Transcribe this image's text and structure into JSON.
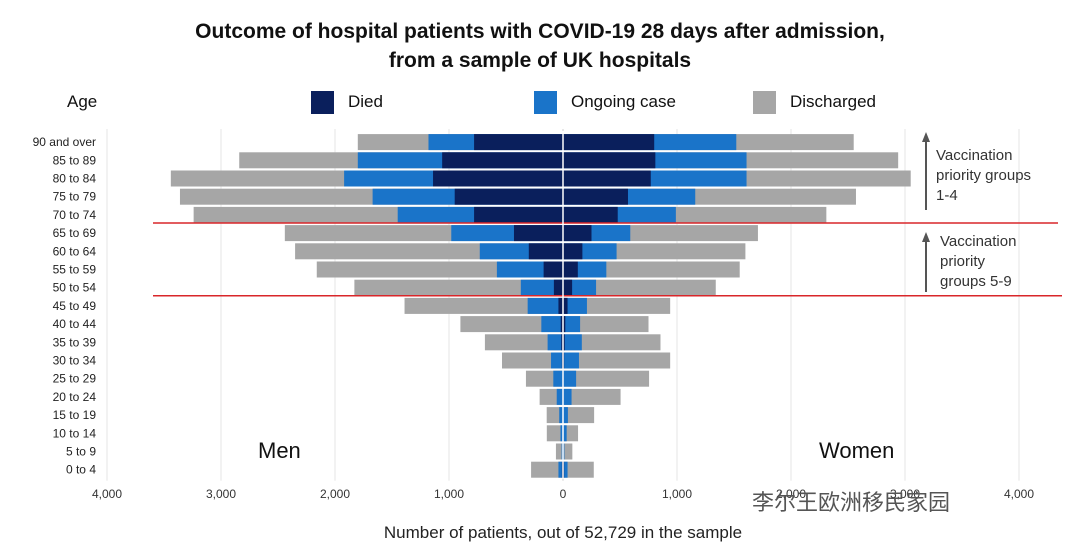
{
  "title_line1": "Outcome of hospital patients with COVID-19 28 days after admission,",
  "title_line2": "from a sample of UK hospitals",
  "age_header": "Age",
  "legend": [
    {
      "label": "Died",
      "color": "#0a1f5c"
    },
    {
      "label": "Ongoing case",
      "color": "#1a74c9"
    },
    {
      "label": "Discharged",
      "color": "#a6a6a6"
    }
  ],
  "group_notes": {
    "group1": [
      "Vaccination",
      "priority groups",
      "1-4"
    ],
    "group2": [
      "Vaccination",
      "priority",
      "groups 5-9"
    ]
  },
  "side_labels": {
    "men": "Men",
    "women": "Women"
  },
  "watermark": "李尔王欧洲移民家园",
  "chart_data": {
    "type": "bar",
    "orientation": "horizontal-population-pyramid",
    "title": "Outcome of hospital patients with COVID-19 28 days after admission, from a sample of UK hospitals",
    "xlabel": "Number of patients, out of 52,729 in the sample",
    "ylabel": "Age",
    "x_ticks": [
      "4,000",
      "3,000",
      "2,000",
      "1,000",
      "0",
      "1,000",
      "2,000",
      "3,000",
      "4,000"
    ],
    "xlim": [
      -4000,
      4000
    ],
    "stacking": "cumulative from centre: Died, then Ongoing case, then Discharged",
    "categories": [
      "90 and over",
      "85 to 89",
      "80 to 84",
      "75 to 79",
      "70 to 74",
      "65 to 69",
      "60 to 64",
      "55 to 59",
      "50 to 54",
      "45 to 49",
      "40 to 44",
      "35 to 39",
      "30 to 34",
      "25 to 29",
      "20 to 24",
      "15 to 19",
      "10 to 14",
      "5 to 9",
      "0 to 4"
    ],
    "men": {
      "died": [
        780,
        1060,
        1140,
        950,
        780,
        430,
        300,
        170,
        80,
        40,
        20,
        15,
        10,
        5,
        5,
        3,
        2,
        2,
        10
      ],
      "ongoing": [
        400,
        740,
        780,
        720,
        670,
        550,
        430,
        410,
        290,
        270,
        170,
        120,
        95,
        80,
        50,
        30,
        20,
        10,
        30
      ],
      "discharged": [
        620,
        1040,
        1520,
        1690,
        1790,
        1460,
        1620,
        1580,
        1460,
        1080,
        710,
        550,
        430,
        240,
        150,
        110,
        120,
        50,
        240
      ]
    },
    "women": {
      "died": [
        800,
        810,
        770,
        570,
        480,
        250,
        170,
        130,
        80,
        40,
        20,
        15,
        10,
        5,
        5,
        3,
        2,
        2,
        10
      ],
      "ongoing": [
        720,
        800,
        840,
        590,
        510,
        340,
        300,
        250,
        210,
        170,
        130,
        150,
        130,
        110,
        70,
        40,
        30,
        10,
        30
      ],
      "discharged": [
        1030,
        1330,
        1440,
        1410,
        1320,
        1120,
        1130,
        1170,
        1050,
        730,
        600,
        690,
        800,
        640,
        430,
        230,
        100,
        70,
        230
      ]
    },
    "group_lines_between": [
      [
        "70 to 74",
        "65 to 69"
      ],
      [
        "50 to 54",
        "45 to 49"
      ]
    ],
    "grid": "vertical"
  }
}
